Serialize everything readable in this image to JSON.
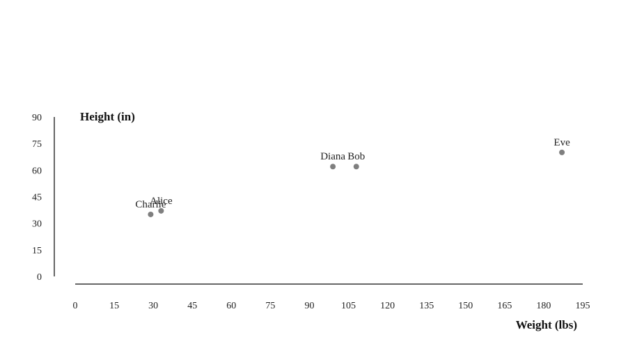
{
  "chart_data": {
    "type": "scatter",
    "xlabel": "Weight (lbs)",
    "ylabel": "Height (in)",
    "xlim": [
      0,
      195
    ],
    "ylim": [
      0,
      90
    ],
    "xticks": [
      0,
      15,
      30,
      45,
      60,
      75,
      90,
      105,
      120,
      135,
      150,
      165,
      180,
      195
    ],
    "yticks": [
      0,
      15,
      30,
      45,
      60,
      75,
      90
    ],
    "grid": false,
    "point_color": "#7f7f7f",
    "points": [
      {
        "label": "Alice",
        "x": 33,
        "y": 37
      },
      {
        "label": "Bob",
        "x": 108,
        "y": 62
      },
      {
        "label": "Charlie",
        "x": 29,
        "y": 35
      },
      {
        "label": "Diana",
        "x": 99,
        "y": 62
      },
      {
        "label": "Eve",
        "x": 187,
        "y": 70
      }
    ]
  }
}
